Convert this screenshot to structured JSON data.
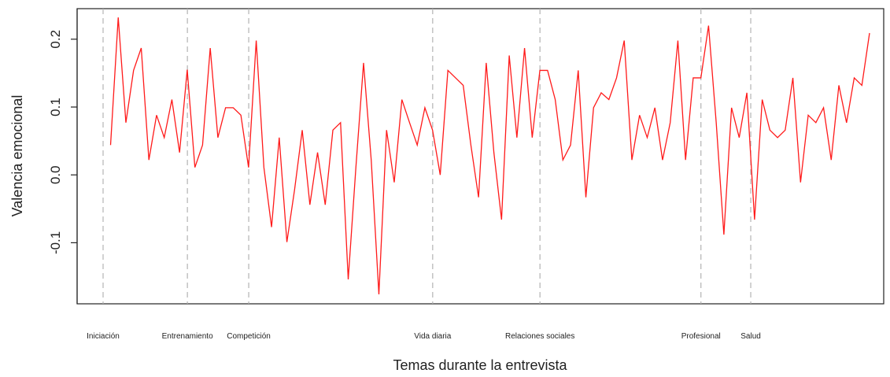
{
  "chart_data": {
    "type": "line",
    "title": "",
    "xlabel": "Temas durante la entrevista",
    "ylabel": "Valencia emocional",
    "ylim": [
      -0.19,
      0.245
    ],
    "yticks": [
      -0.1,
      0.0,
      0.1,
      0.2
    ],
    "ytick_labels": [
      "-0.1",
      "0.0",
      "0.1",
      "0.2"
    ],
    "grid": false,
    "legend": "none",
    "colors": {
      "series": "#ff1a1a",
      "topic_line": "#b3b3b3",
      "axis": "#222222"
    },
    "topics": [
      {
        "label": "Iniciación",
        "x": 0
      },
      {
        "label": "Entrenamiento",
        "x": 11
      },
      {
        "label": "Competición",
        "x": 19
      },
      {
        "label": "Vida diaria",
        "x": 43
      },
      {
        "label": "Relaciones sociales",
        "x": 57
      },
      {
        "label": "Profesional",
        "x": 78
      },
      {
        "label": "Salud",
        "x": 84.5
      }
    ],
    "x": [
      1,
      2,
      3,
      4,
      5,
      6,
      7,
      8,
      9,
      10,
      11,
      12,
      13,
      14,
      15,
      16,
      17,
      18,
      19,
      20,
      21,
      22,
      23,
      24,
      25,
      26,
      27,
      28,
      29,
      30,
      31,
      32,
      33,
      34,
      35,
      36,
      37,
      38,
      39,
      40,
      41,
      42,
      43,
      44,
      45,
      46,
      47,
      48,
      49,
      50,
      51,
      52,
      53,
      54,
      55,
      56,
      57,
      58,
      59,
      60,
      61,
      62,
      63,
      64,
      65,
      66,
      67,
      68,
      69,
      70,
      71,
      72,
      73,
      74,
      75,
      76,
      77,
      78,
      79,
      80,
      81,
      82,
      83,
      84,
      85,
      86,
      87,
      88,
      89,
      90,
      91,
      92,
      93,
      94,
      95,
      96,
      97,
      98,
      99,
      100
    ],
    "values": [
      0.044,
      0.232,
      0.077,
      0.154,
      0.187,
      0.022,
      0.088,
      0.055,
      0.111,
      0.033,
      0.155,
      0.011,
      0.044,
      0.187,
      0.055,
      0.099,
      0.099,
      0.088,
      0.011,
      0.198,
      0.011,
      -0.077,
      0.055,
      -0.099,
      -0.022,
      0.066,
      -0.044,
      0.033,
      -0.044,
      0.066,
      0.077,
      -0.154,
      0.011,
      0.165,
      0.022,
      -0.176,
      0.066,
      -0.011,
      0.111,
      0.077,
      0.044,
      0.099,
      0.066,
      0.0,
      0.154,
      0.143,
      0.132,
      0.044,
      -0.033,
      0.165,
      0.033,
      -0.066,
      0.176,
      0.055,
      0.187,
      0.055,
      0.154,
      0.154,
      0.111,
      0.022,
      0.044,
      0.154,
      -0.033,
      0.099,
      0.121,
      0.111,
      0.143,
      0.198,
      0.022,
      0.088,
      0.055,
      0.099,
      0.022,
      0.077,
      0.198,
      0.022,
      0.143,
      0.143,
      0.22,
      0.077,
      -0.088,
      0.099,
      0.055,
      0.121,
      -0.066,
      0.111,
      0.066,
      0.055,
      0.066,
      0.143,
      -0.011,
      0.088,
      0.077,
      0.099,
      0.022,
      0.132,
      0.077,
      0.143,
      0.132,
      0.209
    ]
  }
}
